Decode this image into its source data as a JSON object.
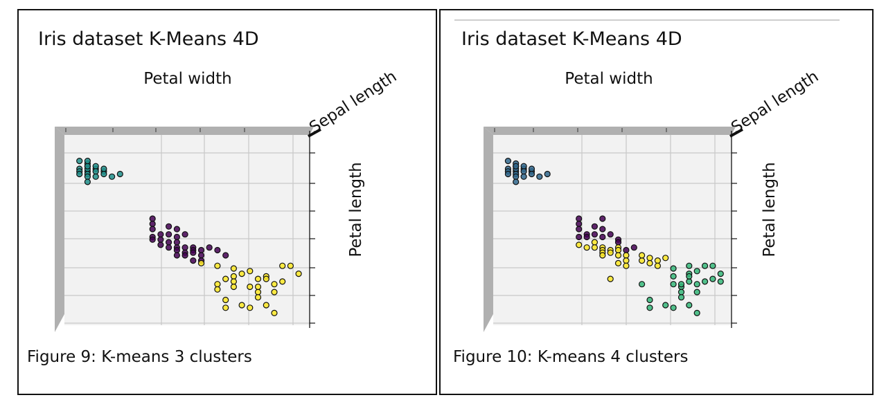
{
  "colors": {
    "cluster_purple": "#440154",
    "cluster_teal": "#21918c",
    "cluster_yellow": "#fde725",
    "cluster_green": "#35b779",
    "cluster_blue": "#31688e",
    "pane_gray": "#b0b0b0",
    "grid": "#c8c8c8"
  },
  "figures": [
    {
      "caption": "Figure 9: K-means 3 clusters",
      "chart_data": {
        "type": "scatter",
        "title": "Iris dataset K-Means 4D",
        "xlabel": "Petal width",
        "ylabel": "Petal length",
        "zlabel": "Sepal length",
        "view": "3d-top",
        "grid": true,
        "clusters": 3,
        "series": [
          {
            "color": "#21918c",
            "points": [
              [
                0.1,
                1.4
              ],
              [
                0.2,
                1.3
              ],
              [
                0.2,
                1.5
              ],
              [
                0.2,
                1.4
              ],
              [
                0.3,
                1.4
              ],
              [
                0.1,
                1.5
              ],
              [
                0.2,
                1.6
              ],
              [
                0.4,
                1.5
              ],
              [
                0.2,
                1.2
              ],
              [
                0.3,
                1.3
              ],
              [
                0.1,
                1.6
              ],
              [
                0.2,
                1.7
              ],
              [
                0.3,
                1.5
              ],
              [
                0.4,
                1.4
              ],
              [
                0.2,
                1.3
              ],
              [
                0.4,
                1.6
              ],
              [
                0.5,
                1.7
              ],
              [
                0.6,
                1.6
              ],
              [
                0.2,
                1.9
              ],
              [
                0.3,
                1.7
              ],
              [
                0.1,
                1.1
              ],
              [
                0.2,
                1.1
              ]
            ]
          },
          {
            "color": "#440154",
            "points": [
              [
                1.0,
                3.3
              ],
              [
                1.0,
                3.5
              ],
              [
                1.0,
                3.7
              ],
              [
                1.0,
                4.0
              ],
              [
                1.0,
                4.1
              ],
              [
                1.1,
                3.9
              ],
              [
                1.1,
                4.1
              ],
              [
                1.2,
                3.9
              ],
              [
                1.2,
                4.2
              ],
              [
                1.2,
                4.4
              ],
              [
                1.3,
                4.0
              ],
              [
                1.3,
                4.2
              ],
              [
                1.3,
                4.4
              ],
              [
                1.3,
                4.5
              ],
              [
                1.3,
                4.7
              ],
              [
                1.4,
                4.4
              ],
              [
                1.4,
                4.6
              ],
              [
                1.4,
                4.7
              ],
              [
                1.5,
                4.4
              ],
              [
                1.5,
                4.5
              ],
              [
                1.5,
                4.6
              ],
              [
                1.5,
                4.9
              ],
              [
                1.6,
                4.5
              ],
              [
                1.6,
                4.7
              ],
              [
                1.6,
                4.9
              ],
              [
                1.7,
                4.4
              ],
              [
                1.8,
                4.5
              ],
              [
                1.9,
                4.7
              ],
              [
                1.3,
                3.7
              ],
              [
                1.2,
                3.6
              ],
              [
                1.4,
                3.9
              ],
              [
                1.1,
                4.3
              ]
            ]
          },
          {
            "color": "#fde725",
            "points": [
              [
                1.6,
                5.0
              ],
              [
                1.8,
                5.1
              ],
              [
                2.0,
                5.2
              ],
              [
                2.0,
                5.5
              ],
              [
                2.0,
                5.7
              ],
              [
                2.0,
                5.9
              ],
              [
                2.1,
                5.4
              ],
              [
                2.3,
                5.6
              ],
              [
                2.2,
                5.9
              ],
              [
                1.8,
                5.8
              ],
              [
                1.8,
                6.0
              ],
              [
                1.9,
                5.6
              ],
              [
                2.3,
                6.1
              ],
              [
                2.3,
                6.3
              ],
              [
                2.4,
                6.6
              ],
              [
                2.5,
                6.9
              ],
              [
                2.5,
                6.1
              ],
              [
                2.2,
                6.7
              ],
              [
                2.4,
                5.5
              ],
              [
                2.4,
                5.6
              ],
              [
                2.5,
                5.8
              ],
              [
                2.1,
                6.6
              ],
              [
                1.9,
                6.7
              ],
              [
                1.9,
                6.4
              ],
              [
                2.6,
                5.1
              ],
              [
                2.6,
                5.7
              ],
              [
                2.2,
                5.3
              ],
              [
                2.7,
                5.1
              ],
              [
                2.8,
                5.4
              ],
              [
                2.3,
                5.9
              ]
            ]
          }
        ]
      }
    },
    {
      "caption": "Figure 10: K-means 4 clusters",
      "chart_data": {
        "type": "scatter",
        "title": "Iris dataset K-Means 4D",
        "xlabel": "Petal width",
        "ylabel": "Petal length",
        "zlabel": "Sepal length",
        "view": "3d-top",
        "grid": true,
        "clusters": 4,
        "series": [
          {
            "color": "#31688e",
            "points": [
              [
                0.1,
                1.4
              ],
              [
                0.2,
                1.3
              ],
              [
                0.2,
                1.5
              ],
              [
                0.2,
                1.4
              ],
              [
                0.3,
                1.4
              ],
              [
                0.1,
                1.5
              ],
              [
                0.2,
                1.6
              ],
              [
                0.4,
                1.5
              ],
              [
                0.2,
                1.2
              ],
              [
                0.3,
                1.3
              ],
              [
                0.1,
                1.6
              ],
              [
                0.2,
                1.7
              ],
              [
                0.3,
                1.5
              ],
              [
                0.4,
                1.4
              ],
              [
                0.2,
                1.3
              ],
              [
                0.4,
                1.6
              ],
              [
                0.5,
                1.7
              ],
              [
                0.6,
                1.6
              ],
              [
                0.2,
                1.9
              ],
              [
                0.3,
                1.7
              ],
              [
                0.1,
                1.1
              ]
            ]
          },
          {
            "color": "#440154",
            "points": [
              [
                1.0,
                3.3
              ],
              [
                1.0,
                3.5
              ],
              [
                1.0,
                3.7
              ],
              [
                1.0,
                4.0
              ],
              [
                1.1,
                3.9
              ],
              [
                1.2,
                3.9
              ],
              [
                1.2,
                3.6
              ],
              [
                1.3,
                3.7
              ],
              [
                1.3,
                3.3
              ],
              [
                1.4,
                3.9
              ],
              [
                1.5,
                4.1
              ],
              [
                1.5,
                4.2
              ],
              [
                1.6,
                4.5
              ],
              [
                1.7,
                4.4
              ],
              [
                1.1,
                4.0
              ],
              [
                1.3,
                4.0
              ]
            ]
          },
          {
            "color": "#fde725",
            "points": [
              [
                1.0,
                4.3
              ],
              [
                1.1,
                4.4
              ],
              [
                1.2,
                4.2
              ],
              [
                1.2,
                4.4
              ],
              [
                1.3,
                4.4
              ],
              [
                1.3,
                4.5
              ],
              [
                1.3,
                4.6
              ],
              [
                1.3,
                4.7
              ],
              [
                1.4,
                4.5
              ],
              [
                1.4,
                4.6
              ],
              [
                1.5,
                4.4
              ],
              [
                1.5,
                4.5
              ],
              [
                1.5,
                4.7
              ],
              [
                1.6,
                4.7
              ],
              [
                1.6,
                4.9
              ],
              [
                1.8,
                4.9
              ],
              [
                1.9,
                4.8
              ],
              [
                1.8,
                4.7
              ],
              [
                1.9,
                5.0
              ],
              [
                2.0,
                4.9
              ],
              [
                2.1,
                4.8
              ],
              [
                2.0,
                5.1
              ],
              [
                1.6,
                5.1
              ],
              [
                1.5,
                5.0
              ],
              [
                1.4,
                5.6
              ]
            ]
          },
          {
            "color": "#35b779",
            "points": [
              [
                2.2,
                5.2
              ],
              [
                2.2,
                5.5
              ],
              [
                2.2,
                5.8
              ],
              [
                2.4,
                5.1
              ],
              [
                2.4,
                5.4
              ],
              [
                2.4,
                5.7
              ],
              [
                2.3,
                5.9
              ],
              [
                1.8,
                5.8
              ],
              [
                2.3,
                6.1
              ],
              [
                2.3,
                6.3
              ],
              [
                2.4,
                6.6
              ],
              [
                2.5,
                6.9
              ],
              [
                2.5,
                6.1
              ],
              [
                2.2,
                6.7
              ],
              [
                2.4,
                5.5
              ],
              [
                2.5,
                5.8
              ],
              [
                2.1,
                6.6
              ],
              [
                1.9,
                6.7
              ],
              [
                1.9,
                6.4
              ],
              [
                2.6,
                5.1
              ],
              [
                2.6,
                5.7
              ],
              [
                2.7,
                5.1
              ],
              [
                2.8,
                5.4
              ],
              [
                2.7,
                5.6
              ],
              [
                2.5,
                5.3
              ],
              [
                2.3,
                5.8
              ],
              [
                2.8,
                5.7
              ]
            ]
          }
        ]
      }
    }
  ]
}
